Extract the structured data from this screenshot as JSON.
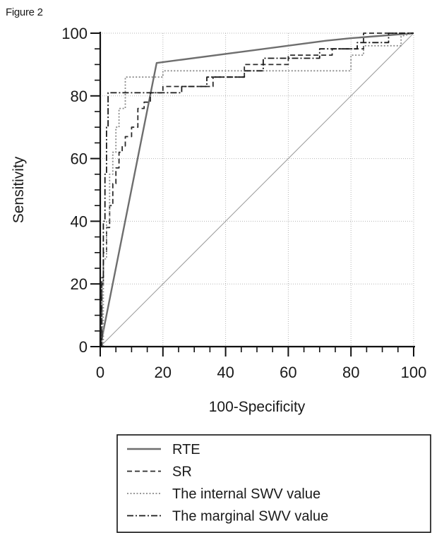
{
  "figure_label": "Figure 2",
  "chart_data": {
    "type": "line",
    "xlabel": "100-Specificity",
    "ylabel": "Sensitivity",
    "xlim": [
      0,
      100
    ],
    "ylim": [
      0,
      100
    ],
    "xticks": [
      "0",
      "20",
      "40",
      "60",
      "80",
      "100"
    ],
    "yticks": [
      "0",
      "20",
      "40",
      "60",
      "80",
      "100"
    ],
    "grid": "dotted",
    "legend_position": "bottom",
    "reference_line": {
      "x": [
        0,
        100
      ],
      "y": [
        0,
        100
      ],
      "color": "#9a9a9a"
    },
    "series": [
      {
        "name": "RTE",
        "style": "solid",
        "color": "#6e6e6e",
        "x": [
          0,
          18,
          72,
          80,
          100
        ],
        "y": [
          0,
          90.5,
          97.6,
          98.4,
          100
        ]
      },
      {
        "name": "SR",
        "style": "dashed",
        "color": "#2b2b2b",
        "x": [
          0,
          0.5,
          0.5,
          1,
          1,
          2,
          2,
          3,
          3,
          4,
          4,
          5,
          5,
          6,
          6,
          7,
          7,
          8,
          8,
          10,
          10,
          12,
          12,
          14,
          14,
          16,
          16,
          20,
          20,
          36,
          36,
          46,
          46,
          60,
          60,
          74,
          74,
          84,
          84,
          100
        ],
        "y": [
          0,
          0,
          22,
          22,
          30,
          30,
          38,
          38,
          45,
          45,
          52,
          52,
          57,
          57,
          62,
          62,
          64,
          64,
          67,
          67,
          70,
          70,
          76,
          76,
          78,
          78,
          81,
          81,
          83,
          83,
          86,
          86,
          90,
          90,
          93,
          93,
          95,
          95,
          100,
          100
        ]
      },
      {
        "name": "The internal SWV value",
        "style": "dotted",
        "color": "#8a8a8a",
        "x": [
          0,
          1,
          1,
          2,
          2,
          3,
          3,
          4,
          4,
          5,
          5,
          6,
          6,
          8,
          8,
          20,
          20,
          80,
          80,
          84,
          84,
          96,
          96,
          100
        ],
        "y": [
          0,
          0,
          28,
          28,
          40,
          40,
          55,
          55,
          62,
          62,
          70,
          70,
          76,
          76,
          86,
          86,
          88,
          88,
          93,
          93,
          96,
          96,
          99,
          100
        ]
      },
      {
        "name": "The marginal SWV value",
        "style": "dashdot",
        "color": "#1a1a1a",
        "x": [
          0,
          0.5,
          0.5,
          1,
          1,
          1.5,
          1.5,
          2,
          2,
          2.5,
          2.5,
          26,
          26,
          34,
          34,
          46,
          46,
          52,
          52,
          70,
          70,
          82,
          82,
          92,
          92,
          100
        ],
        "y": [
          0,
          0,
          20,
          20,
          40,
          40,
          55,
          55,
          70,
          70,
          81,
          81,
          83,
          83,
          86,
          86,
          88,
          88,
          92,
          92,
          95,
          95,
          97,
          97,
          100,
          100
        ]
      }
    ]
  }
}
